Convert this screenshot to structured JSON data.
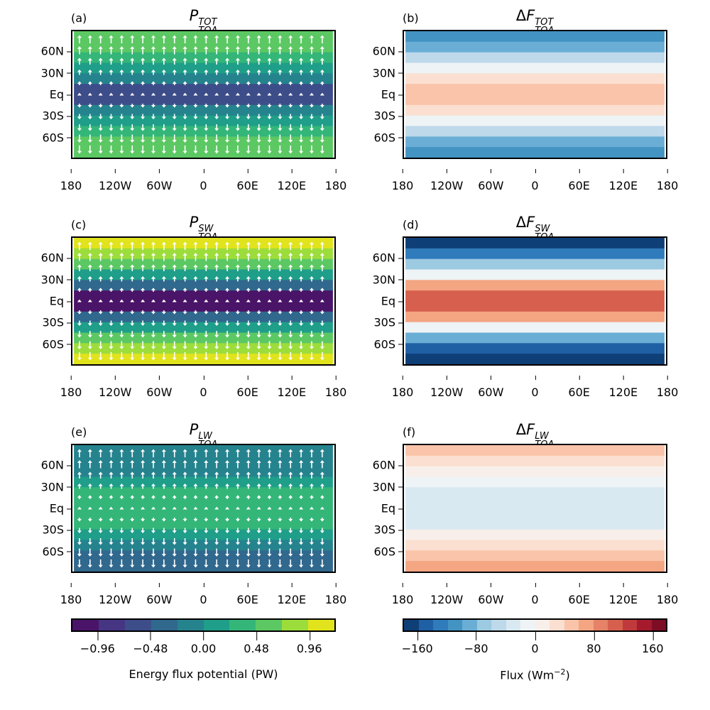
{
  "lat_ticks": [
    "60N",
    "30N",
    "Eq",
    "30S",
    "60S"
  ],
  "lat_values": [
    60,
    30,
    0,
    -30,
    -60
  ],
  "lon_ticks": [
    "180",
    "120W",
    "60W",
    "0",
    "60E",
    "120E",
    "180"
  ],
  "lon_values": [
    -180,
    -120,
    -60,
    0,
    60,
    120,
    180
  ],
  "colorbars": {
    "potential": {
      "label": "Energy flux potential (PW)",
      "range": [
        -1.2,
        1.2
      ],
      "ticks": [
        "−0.96",
        "−0.48",
        "0.00",
        "0.48",
        "0.96"
      ],
      "tick_values": [
        -0.96,
        -0.48,
        0,
        0.48,
        0.96
      ],
      "colors": [
        "#4a1468",
        "#463583",
        "#3d4d8a",
        "#30688e",
        "#25838e",
        "#1f9e89",
        "#34b679",
        "#5cc863",
        "#9ddd3b",
        "#e1e31c"
      ]
    },
    "flux": {
      "label": "Flux (Wm",
      "label_sup": "−2",
      "label_end": ")",
      "range": [
        -180,
        180
      ],
      "ticks": [
        "−160",
        "−80",
        "0",
        "80",
        "160"
      ],
      "tick_values": [
        -160,
        -80,
        0,
        80,
        160
      ],
      "colors": [
        "#0e3f76",
        "#1f5fa4",
        "#2f7bbb",
        "#4393c3",
        "#6aaed6",
        "#9ccae1",
        "#bdd9ea",
        "#d8e9f2",
        "#eef3f6",
        "#f8efea",
        "#fbdfd0",
        "#f9c4a9",
        "#f4a582",
        "#e58267",
        "#d6604d",
        "#c03a3b",
        "#a51a2d",
        "#7d0c25"
      ]
    }
  },
  "panels": [
    {
      "label": "(a)",
      "delta": "",
      "base": "P",
      "sup": "TOT",
      "sub": "TOA",
      "colorbar": "potential",
      "arrows": true,
      "zonal_profile": [
        0.6,
        0.6,
        0.36,
        0.12,
        -0.12,
        -0.6,
        -0.6,
        -0.12,
        0.12,
        0.36,
        0.6,
        0.6
      ]
    },
    {
      "label": "(b)",
      "delta": "Δ",
      "base": "F",
      "sup": "TOT",
      "sub": "TOA",
      "colorbar": "flux",
      "arrows": false,
      "zonal_profile": [
        -110,
        -90,
        -50,
        -10,
        30,
        50,
        50,
        30,
        -10,
        -50,
        -90,
        -110
      ]
    },
    {
      "label": "(c)",
      "delta": "",
      "base": "P",
      "sup": "SW",
      "sub": "TOA",
      "colorbar": "potential",
      "arrows": true,
      "zonal_profile": [
        1.08,
        0.84,
        0.6,
        0.12,
        -0.36,
        -1.08,
        -1.08,
        -0.36,
        0.12,
        0.6,
        0.84,
        1.08
      ]
    },
    {
      "label": "(d)",
      "delta": "Δ",
      "base": "F",
      "sup": "SW",
      "sub": "TOA",
      "colorbar": "flux",
      "arrows": false,
      "zonal_profile": [
        -170,
        -130,
        -70,
        -10,
        70,
        110,
        110,
        70,
        -10,
        -90,
        -150,
        -170
      ]
    },
    {
      "label": "(e)",
      "delta": "",
      "base": "P",
      "sup": "LW",
      "sub": "TOA",
      "colorbar": "potential",
      "arrows": true,
      "zonal_profile": [
        -0.12,
        -0.12,
        -0.12,
        0.12,
        0.36,
        0.36,
        0.36,
        0.36,
        0.12,
        -0.12,
        -0.36,
        -0.36
      ]
    },
    {
      "label": "(f)",
      "delta": "Δ",
      "base": "F",
      "sup": "LW",
      "sub": "TOA",
      "colorbar": "flux",
      "arrows": false,
      "zonal_profile": [
        50,
        30,
        10,
        -10,
        -30,
        -30,
        -30,
        -30,
        10,
        30,
        50,
        70
      ]
    }
  ]
}
